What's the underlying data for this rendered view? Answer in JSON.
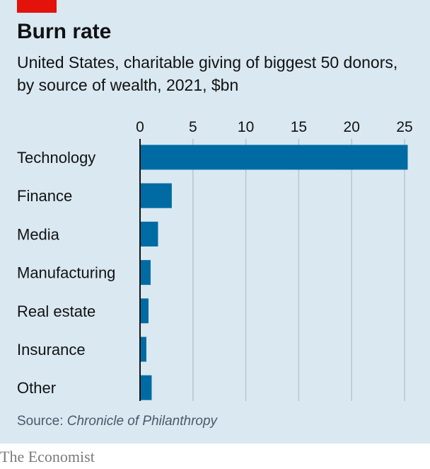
{
  "title": "Burn rate",
  "subtitle": "United States, charitable giving of biggest 50 donors, by source of wealth, 2021, $bn",
  "source_label": "Source: ",
  "source_name": "Chronicle of Philanthropy",
  "brand": "The Economist",
  "colors": {
    "background": "#d9e8f1",
    "bar": "#006ba2",
    "accent": "#e3120b",
    "gridline": "#b7c6cf"
  },
  "chart_data": {
    "type": "bar",
    "orientation": "horizontal",
    "categories": [
      "Technology",
      "Finance",
      "Media",
      "Manufacturing",
      "Real estate",
      "Insurance",
      "Other"
    ],
    "values": [
      25.3,
      3.0,
      1.7,
      1.0,
      0.8,
      0.6,
      1.1
    ],
    "xticks": [
      0,
      5,
      10,
      15,
      20,
      25
    ],
    "xlim": [
      0,
      25
    ],
    "tick_position": "top",
    "grid": true
  }
}
